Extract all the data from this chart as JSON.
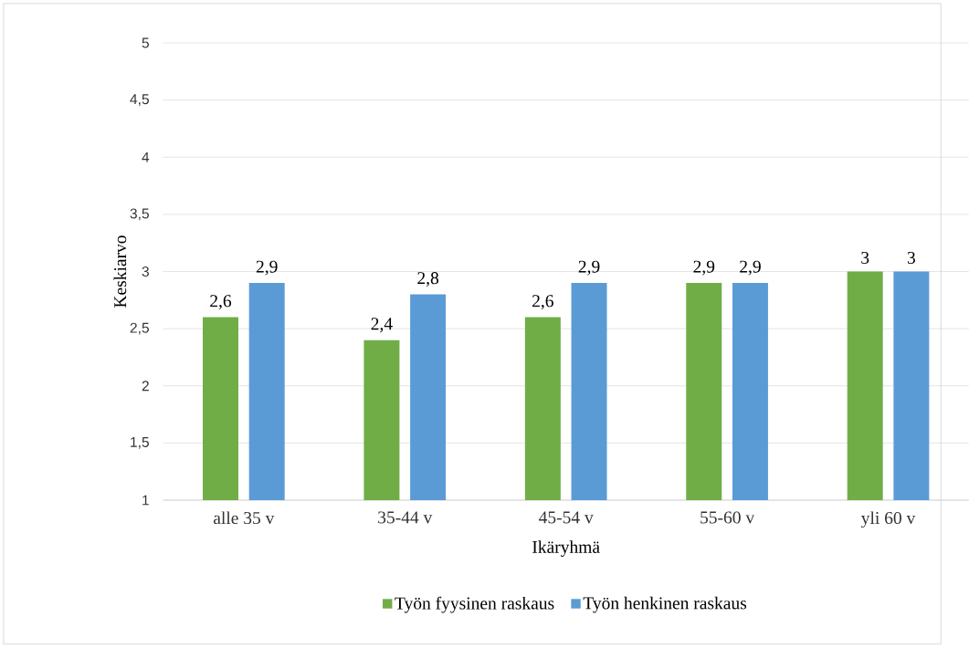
{
  "chart_data": {
    "type": "bar",
    "xlabel": "Ikäryhmä",
    "ylabel": "Keskiarvo",
    "categories": [
      "alle 35 v",
      "35-44 v",
      "45-54 v",
      "55-60 v",
      "yli 60 v"
    ],
    "series": [
      {
        "name": "Työn fyysinen raskaus",
        "color": "#70ad47",
        "values": [
          2.6,
          2.4,
          2.6,
          2.9,
          3
        ],
        "value_labels": [
          "2,6",
          "2,4",
          "2,6",
          "2,9",
          "3"
        ]
      },
      {
        "name": "Työn henkinen raskaus",
        "color": "#5b9bd5",
        "values": [
          2.9,
          2.8,
          2.9,
          2.9,
          3
        ],
        "value_labels": [
          "2,9",
          "2,8",
          "2,9",
          "2,9",
          "3"
        ]
      }
    ],
    "ylim": [
      1,
      5
    ],
    "yticks": [
      1,
      {
        "value": 1.5,
        "label": "1,5"
      },
      2,
      {
        "value": 2.5,
        "label": "2,5"
      },
      3,
      {
        "value": 3.5,
        "label": "3,5"
      },
      4,
      {
        "value": 4.5,
        "label": "4,5"
      },
      5
    ],
    "grid": "y",
    "legend": "bottom"
  }
}
